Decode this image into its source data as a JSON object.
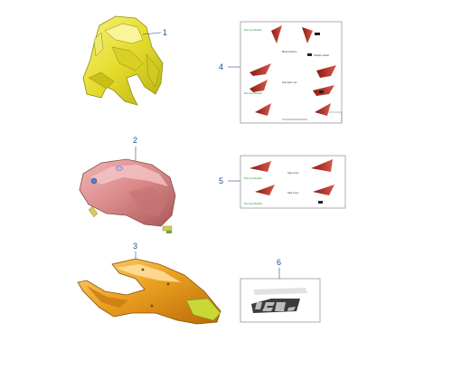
{
  "diagram": {
    "parts": [
      {
        "number": "1"
      },
      {
        "number": "2"
      },
      {
        "number": "3"
      },
      {
        "number": "4"
      },
      {
        "number": "5"
      },
      {
        "number": "6"
      }
    ],
    "colors": {
      "callout": "#1f4e8c",
      "fairing": "#e8e038",
      "tank": "#d9898a",
      "tail": "#e8a020",
      "decal_red": "#c0392b",
      "decal_green": "#2e9a3a"
    }
  }
}
